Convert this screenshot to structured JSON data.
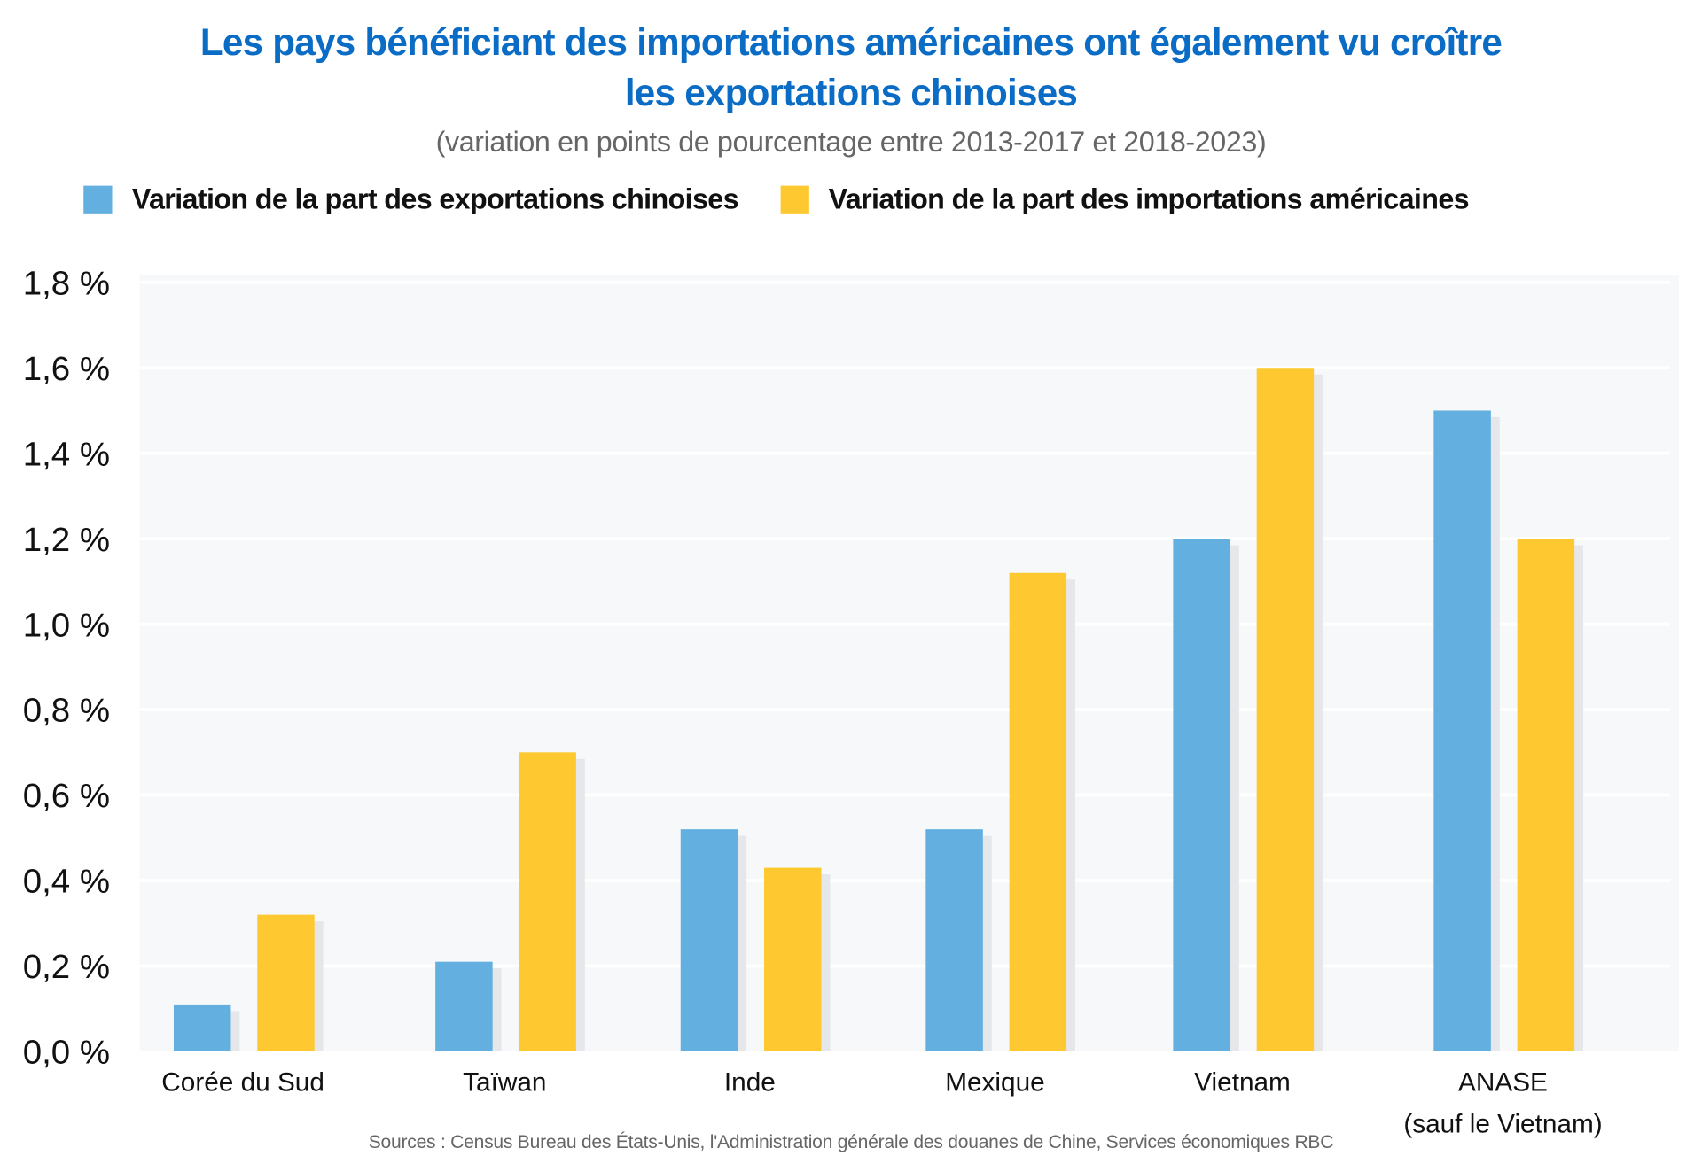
{
  "chart_data": {
    "type": "bar",
    "title": "Les pays bénéficiant des importations américaines ont également vu croître les exportations chinoises",
    "title_lines": [
      "Les pays bénéficiant des importations américaines ont également vu croître",
      "les exportations chinoises"
    ],
    "subtitle": "(variation en points de pourcentage entre 2013-2017 et 2018-2023)",
    "categories": [
      "Corée du Sud",
      "Taïwan",
      "Inde",
      "Mexique",
      "Vietnam",
      "ANASE\n(sauf le Vietnam)"
    ],
    "series": [
      {
        "name": "Variation de la part des exportations chinoises",
        "color": "#62afe0",
        "values": [
          0.11,
          0.21,
          0.52,
          0.52,
          1.2,
          1.5
        ]
      },
      {
        "name": "Variation de la part des importations américaines",
        "color": "#fec930",
        "values": [
          0.32,
          0.7,
          0.43,
          1.12,
          1.6,
          1.2
        ]
      }
    ],
    "yticks": [
      "0,0 %",
      "0,2 %",
      "0,4 %",
      "0,6 %",
      "0,8 %",
      "1,0 %",
      "1,2 %",
      "1,4 %",
      "1,6 %",
      "1,8 %"
    ],
    "ylim": [
      0,
      1.8
    ],
    "grid": true,
    "legend": "top",
    "source": "Sources : Census Bureau des États-Unis, l'Administration générale des douanes de Chine, Services économiques RBC"
  }
}
